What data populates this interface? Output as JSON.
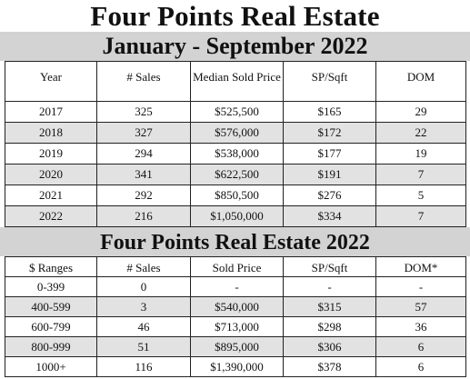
{
  "title": "Four Points Real Estate",
  "subtitle": "January - September 2022",
  "table1": {
    "headers": [
      "Year",
      "# Sales",
      "Median Sold Price",
      "SP/Sqft",
      "DOM"
    ],
    "rows": [
      [
        "2017",
        "325",
        "$525,500",
        "$165",
        "29"
      ],
      [
        "2018",
        "327",
        "$576,000",
        "$172",
        "22"
      ],
      [
        "2019",
        "294",
        "$538,000",
        "$177",
        "19"
      ],
      [
        "2020",
        "341",
        "$622,500",
        "$191",
        "7"
      ],
      [
        "2021",
        "292",
        "$850,500",
        "$276",
        "5"
      ],
      [
        "2022",
        "216",
        "$1,050,000",
        "$334",
        "7"
      ]
    ]
  },
  "section2_title": "Four Points Real Estate 2022",
  "table2": {
    "headers": [
      "$ Ranges",
      "# Sales",
      "Sold Price",
      "SP/Sqft",
      "DOM*"
    ],
    "rows": [
      [
        "0-399",
        "0",
        "-",
        "-",
        "-"
      ],
      [
        "400-599",
        "3",
        "$540,000",
        "$315",
        "57"
      ],
      [
        "600-799",
        "46",
        "$713,000",
        "$298",
        "36"
      ],
      [
        "800-999",
        "51",
        "$895,000",
        "$306",
        "6"
      ],
      [
        "1000+",
        "116",
        "$1,390,000",
        "$378",
        "6"
      ]
    ]
  },
  "colors": {
    "band": "#d3d3d3",
    "row_alt": "#e2e2e2",
    "border": "#222222"
  }
}
